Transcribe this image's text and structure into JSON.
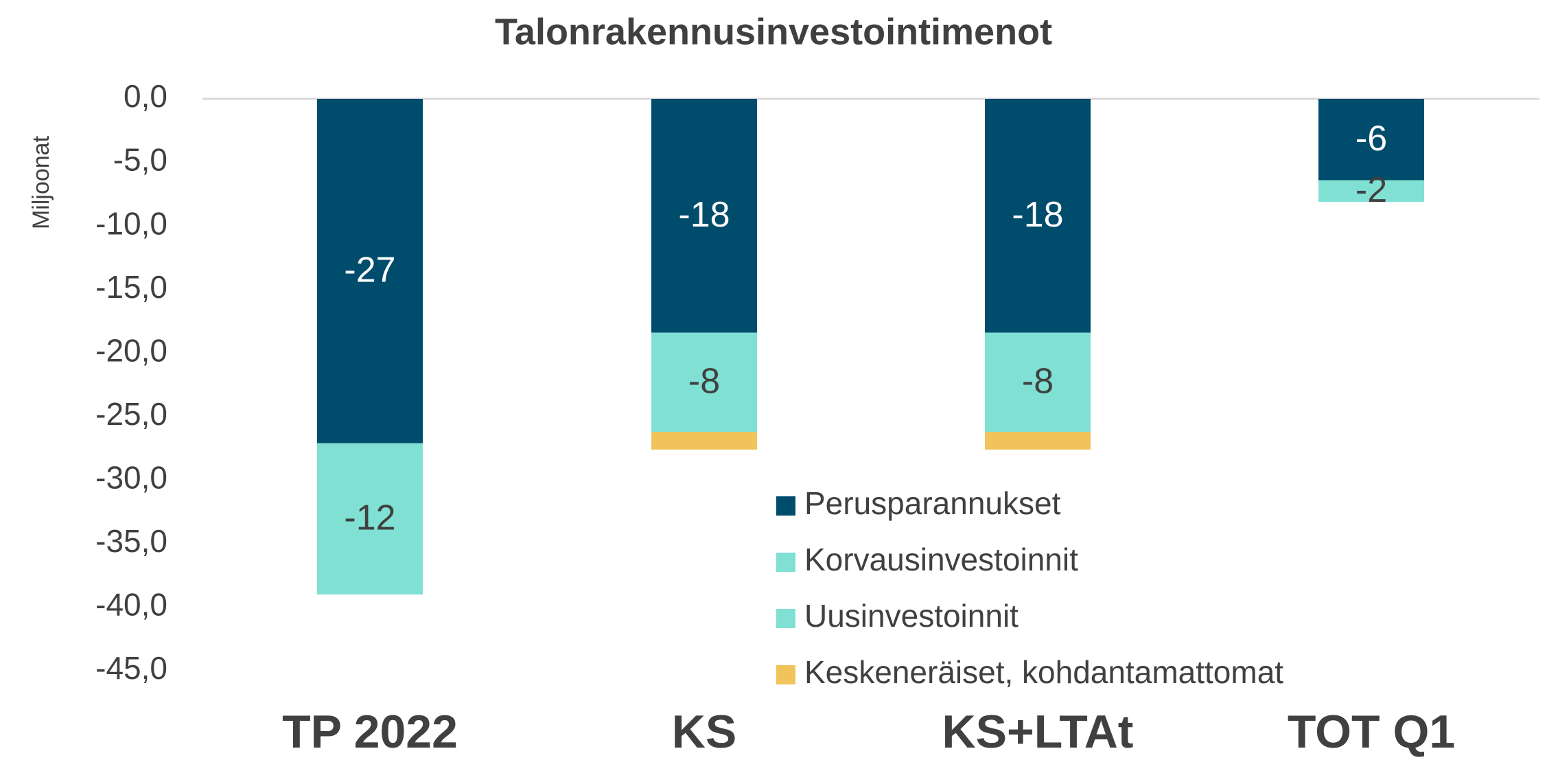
{
  "chart_data": {
    "type": "stacked_bar",
    "title": "Talonrakennusinvestointimenot",
    "y_label": "Miljoonat",
    "categories": [
      "TP 2022",
      "KS",
      "KS+LTAt",
      "TOT Q1"
    ],
    "series": [
      {
        "name": "Perusparannukset",
        "color": "#004c6d",
        "label_color": "#ffffff",
        "values": [
          -27.1,
          -18.4,
          -18.4,
          -6.4
        ],
        "value_labels": [
          "-27",
          "-18",
          "-18",
          "-6"
        ]
      },
      {
        "name": "Korvausinvestoinnit",
        "color": "#7fe0d3",
        "label_color": "#404040",
        "values": [
          -11.9,
          -7.8,
          -7.8,
          -1.7
        ],
        "value_labels": [
          "-12",
          "-8",
          "-8",
          "-2"
        ]
      },
      {
        "name": "Uusinvestoinnit",
        "color": "#7fe0d3",
        "values": [
          0,
          0,
          0,
          0
        ]
      },
      {
        "name": "Keskeneräiset, kohdantamattomat",
        "color": "#f0c45a",
        "values": [
          0,
          -1.4,
          -1.4,
          0
        ]
      }
    ],
    "ylim": [
      -45,
      0
    ],
    "yticks": [
      {
        "value": 0,
        "label": "0,0"
      },
      {
        "value": -5,
        "label": "-5,0"
      },
      {
        "value": -10,
        "label": "-10,0"
      },
      {
        "value": -15,
        "label": "-15,0"
      },
      {
        "value": -20,
        "label": "-20,0"
      },
      {
        "value": -25,
        "label": "-25,0"
      },
      {
        "value": -30,
        "label": "-30,0"
      },
      {
        "value": -35,
        "label": "-35,0"
      },
      {
        "value": -40,
        "label": "-40,0"
      },
      {
        "value": -45,
        "label": "-45,0"
      }
    ],
    "grid": false,
    "legend": "center-right"
  }
}
